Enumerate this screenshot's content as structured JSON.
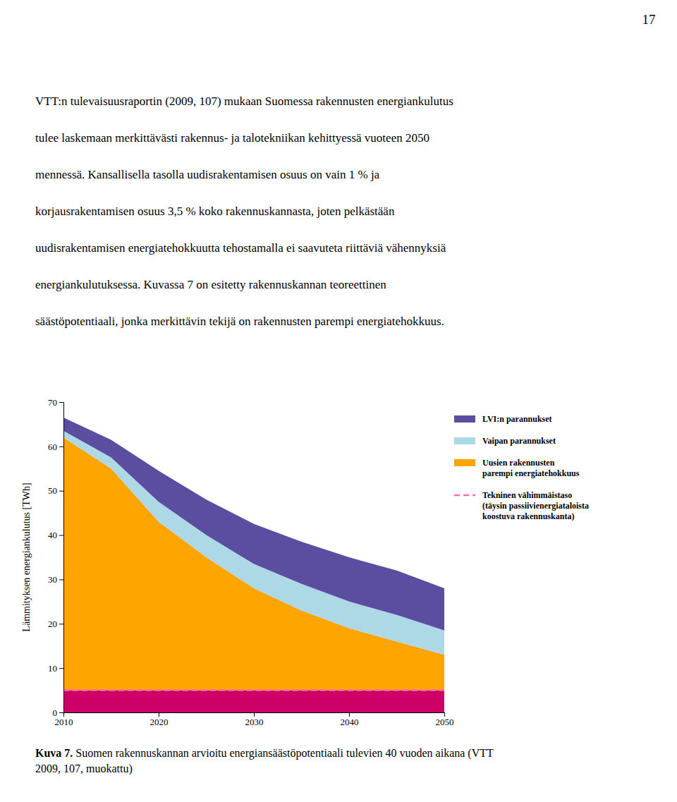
{
  "page": {
    "number": "17",
    "paragraph": [
      "VTT:n tulevaisuusraportin (2009, 107) mukaan Suomessa rakennusten energiankulutus",
      "tulee laskemaan merkittävästi rakennus- ja talotekniikan kehittyessä vuoteen 2050",
      "mennessä. Kansallisella tasolla uudisrakentamisen osuus on vain 1 % ja",
      "korjausrakentamisen osuus 3,5 % koko rakennuskannasta, joten pelkästään",
      "uudisrakentamisen energiatehokkuutta tehostamalla ei saavuteta riittäviä vähennyksiä",
      "energiankulutuksessa. Kuvassa 7 on esitetty rakennuskannan teoreettinen",
      "säästöpotentiaali, jonka merkittävin tekijä on rakennusten parempi energiatehokkuus."
    ],
    "caption": {
      "bold": "Kuva 7.",
      "normal": " Suomen rakennuskannan arvioitu energiansäästöpotentiaali tulevien 40 vuoden aikana (VTT",
      "line2": "2009, 107, muokattu)"
    }
  },
  "chart_data": {
    "type": "area",
    "stacked": true,
    "grid": false,
    "legend": "right",
    "y_label": "Lämmityksen energiankulutus [TWh]",
    "x": [
      2010,
      2015,
      2020,
      2025,
      2030,
      2035,
      2040,
      2045,
      2050
    ],
    "xlim": [
      2010,
      2050
    ],
    "xticks": [
      2010,
      2020,
      2030,
      2040,
      2050
    ],
    "ylim": [
      0,
      70
    ],
    "yticks": [
      0,
      10,
      20,
      30,
      40,
      50,
      60,
      70
    ],
    "series": [
      {
        "color": "#CC0066",
        "values": [
          5.0,
          5.0,
          5.0,
          5.0,
          5.0,
          5.0,
          5.0,
          5.0,
          5.0
        ]
      },
      {
        "name": "Uusien rakennusten\nparempi energiatehokkuus",
        "color": "#FFA500",
        "values": [
          57.0,
          50.0,
          38.0,
          30.0,
          23.0,
          18.0,
          14.0,
          11.0,
          8.0
        ]
      },
      {
        "name": "Vaipan parannukset",
        "color": "#ADD8E6",
        "values": [
          1.5,
          2.5,
          4.5,
          5.0,
          5.5,
          6.0,
          6.0,
          6.0,
          5.5
        ]
      },
      {
        "name": "LVI:n parannukset",
        "color": "#5B4EA0",
        "values": [
          3.0,
          4.0,
          7.0,
          8.0,
          9.0,
          9.5,
          10.0,
          10.0,
          9.5
        ]
      },
      {
        "name": "Tekninen vähimmäistaso\n(täysin passiivienergiataloista\nkoostuva rakennuskanta)",
        "type": "line",
        "line_style": "dashed",
        "color": "#FF69B4",
        "values": [
          5.0,
          5.0,
          5.0,
          5.0,
          5.0,
          5.0,
          5.0,
          5.0,
          5.0
        ]
      }
    ]
  }
}
